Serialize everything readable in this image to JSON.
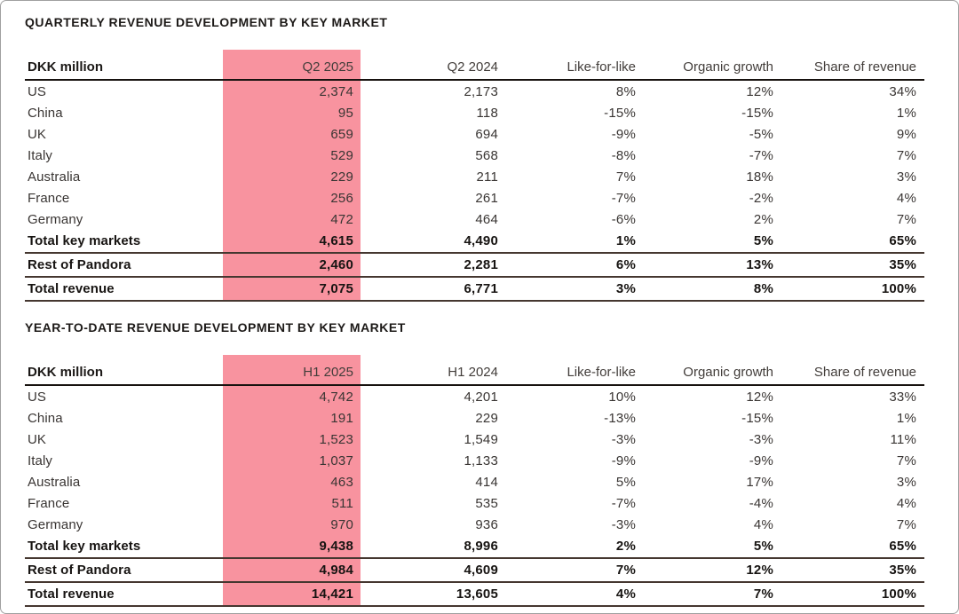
{
  "colors": {
    "highlight_pink": "#F8939F"
  },
  "tables": [
    {
      "title": "QUARTERLY REVENUE DEVELOPMENT BY KEY MARKET",
      "unit_label": "DKK million",
      "columns": {
        "current": "Q2 2025",
        "prior": "Q2 2024",
        "like_for_like": "Like-for-like",
        "organic_growth": "Organic growth",
        "share": "Share of revenue"
      },
      "highlighted_column": "Q2 2025",
      "rows": [
        {
          "market": "US",
          "current": "2,374",
          "prior": "2,173",
          "like_for_like": "8%",
          "organic_growth": "12%",
          "share": "34%",
          "is_total": false
        },
        {
          "market": "China",
          "current": "95",
          "prior": "118",
          "like_for_like": "-15%",
          "organic_growth": "-15%",
          "share": "1%",
          "is_total": false
        },
        {
          "market": "UK",
          "current": "659",
          "prior": "694",
          "like_for_like": "-9%",
          "organic_growth": "-5%",
          "share": "9%",
          "is_total": false
        },
        {
          "market": "Italy",
          "current": "529",
          "prior": "568",
          "like_for_like": "-8%",
          "organic_growth": "-7%",
          "share": "7%",
          "is_total": false
        },
        {
          "market": "Australia",
          "current": "229",
          "prior": "211",
          "like_for_like": "7%",
          "organic_growth": "18%",
          "share": "3%",
          "is_total": false
        },
        {
          "market": "France",
          "current": "256",
          "prior": "261",
          "like_for_like": "-7%",
          "organic_growth": "-2%",
          "share": "4%",
          "is_total": false
        },
        {
          "market": "Germany",
          "current": "472",
          "prior": "464",
          "like_for_like": "-6%",
          "organic_growth": "2%",
          "share": "7%",
          "is_total": false
        },
        {
          "market": "Total key markets",
          "current": "4,615",
          "prior": "4,490",
          "like_for_like": "1%",
          "organic_growth": "5%",
          "share": "65%",
          "is_total": true
        },
        {
          "market": "Rest of Pandora",
          "current": "2,460",
          "prior": "2,281",
          "like_for_like": "6%",
          "organic_growth": "13%",
          "share": "35%",
          "is_total": true
        },
        {
          "market": "Total revenue",
          "current": "7,075",
          "prior": "6,771",
          "like_for_like": "3%",
          "organic_growth": "8%",
          "share": "100%",
          "is_total": true
        }
      ]
    },
    {
      "title": "YEAR-TO-DATE REVENUE DEVELOPMENT BY KEY MARKET",
      "unit_label": "DKK million",
      "columns": {
        "current": "H1 2025",
        "prior": "H1 2024",
        "like_for_like": "Like-for-like",
        "organic_growth": "Organic growth",
        "share": "Share of revenue"
      },
      "highlighted_column": "H1 2025",
      "rows": [
        {
          "market": "US",
          "current": "4,742",
          "prior": "4,201",
          "like_for_like": "10%",
          "organic_growth": "12%",
          "share": "33%",
          "is_total": false
        },
        {
          "market": "China",
          "current": "191",
          "prior": "229",
          "like_for_like": "-13%",
          "organic_growth": "-15%",
          "share": "1%",
          "is_total": false
        },
        {
          "market": "UK",
          "current": "1,523",
          "prior": "1,549",
          "like_for_like": "-3%",
          "organic_growth": "-3%",
          "share": "11%",
          "is_total": false
        },
        {
          "market": "Italy",
          "current": "1,037",
          "prior": "1,133",
          "like_for_like": "-9%",
          "organic_growth": "-9%",
          "share": "7%",
          "is_total": false
        },
        {
          "market": "Australia",
          "current": "463",
          "prior": "414",
          "like_for_like": "5%",
          "organic_growth": "17%",
          "share": "3%",
          "is_total": false
        },
        {
          "market": "France",
          "current": "511",
          "prior": "535",
          "like_for_like": "-7%",
          "organic_growth": "-4%",
          "share": "4%",
          "is_total": false
        },
        {
          "market": "Germany",
          "current": "970",
          "prior": "936",
          "like_for_like": "-3%",
          "organic_growth": "4%",
          "share": "7%",
          "is_total": false
        },
        {
          "market": "Total key markets",
          "current": "9,438",
          "prior": "8,996",
          "like_for_like": "2%",
          "organic_growth": "5%",
          "share": "65%",
          "is_total": true
        },
        {
          "market": "Rest of Pandora",
          "current": "4,984",
          "prior": "4,609",
          "like_for_like": "7%",
          "organic_growth": "12%",
          "share": "35%",
          "is_total": true
        },
        {
          "market": "Total revenue",
          "current": "14,421",
          "prior": "13,605",
          "like_for_like": "4%",
          "organic_growth": "7%",
          "share": "100%",
          "is_total": true
        }
      ]
    }
  ]
}
